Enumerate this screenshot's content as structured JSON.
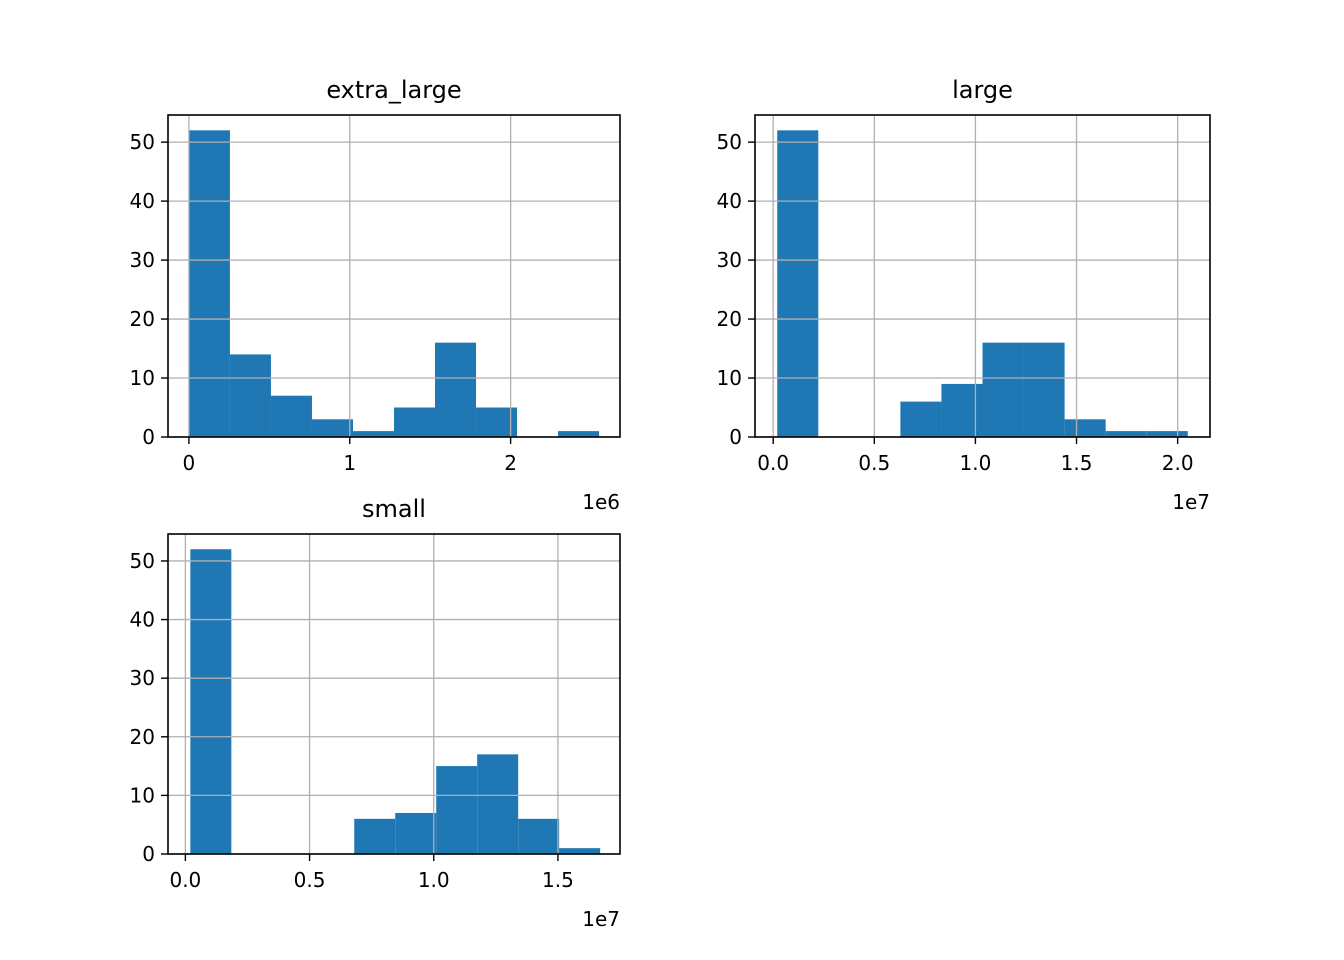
{
  "chart_data": [
    {
      "type": "bar",
      "title": "extra_large",
      "bin_edges": [
        0,
        0.255,
        0.51,
        0.765,
        1.02,
        1.275,
        1.53,
        1.785,
        2.04,
        2.295,
        2.55
      ],
      "values": [
        52,
        14,
        7,
        3,
        1,
        5,
        16,
        5,
        0,
        1
      ],
      "xlim": [
        -0.13,
        2.68
      ],
      "ylim": [
        0,
        54.6
      ],
      "xticks": [
        0,
        1,
        2
      ],
      "xtick_labels": [
        "0",
        "1",
        "2"
      ],
      "yticks": [
        0,
        10,
        20,
        30,
        40,
        50
      ],
      "ytick_labels": [
        "0",
        "10",
        "20",
        "30",
        "40",
        "50"
      ],
      "x_offset_label": "1e6",
      "grid": true,
      "color": "#1f77b4"
    },
    {
      "type": "bar",
      "title": "large",
      "bin_edges": [
        0.02,
        0.223,
        0.426,
        0.629,
        0.832,
        1.035,
        1.238,
        1.441,
        1.644,
        1.847,
        2.05
      ],
      "values": [
        52,
        0,
        0,
        6,
        9,
        16,
        16,
        3,
        1,
        1
      ],
      "xlim": [
        -0.09,
        2.16
      ],
      "ylim": [
        0,
        54.6
      ],
      "xticks": [
        0,
        0.5,
        1.0,
        1.5,
        2.0
      ],
      "xtick_labels": [
        "0.0",
        "0.5",
        "1.0",
        "1.5",
        "2.0"
      ],
      "yticks": [
        0,
        10,
        20,
        30,
        40,
        50
      ],
      "ytick_labels": [
        "0",
        "10",
        "20",
        "30",
        "40",
        "50"
      ],
      "x_offset_label": "1e7",
      "grid": true,
      "color": "#1f77b4"
    },
    {
      "type": "bar",
      "title": "small",
      "bin_edges": [
        0.02,
        0.185,
        0.35,
        0.515,
        0.68,
        0.845,
        1.01,
        1.175,
        1.34,
        1.505,
        1.67
      ],
      "values": [
        52,
        0,
        0,
        0,
        6,
        7,
        15,
        17,
        6,
        1
      ],
      "xlim": [
        -0.07,
        1.75
      ],
      "ylim": [
        0,
        54.6
      ],
      "xticks": [
        0,
        0.5,
        1.0,
        1.5
      ],
      "xtick_labels": [
        "0.0",
        "0.5",
        "1.0",
        "1.5"
      ],
      "yticks": [
        0,
        10,
        20,
        30,
        40,
        50
      ],
      "ytick_labels": [
        "0",
        "10",
        "20",
        "30",
        "40",
        "50"
      ],
      "x_offset_label": "1e7",
      "grid": true,
      "color": "#1f77b4"
    }
  ]
}
